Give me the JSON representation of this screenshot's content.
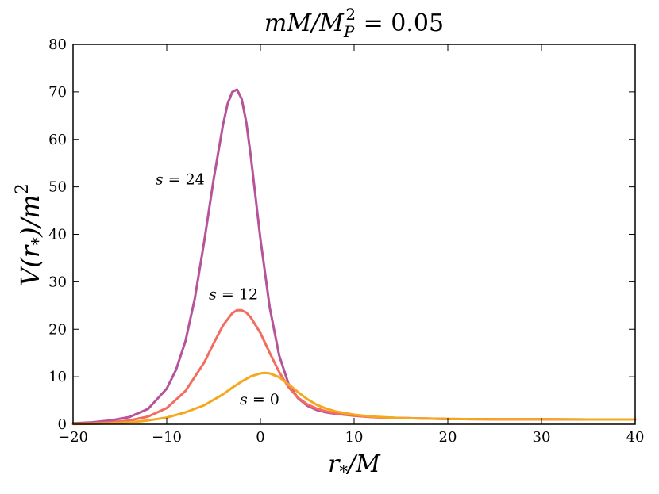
{
  "chart_data": {
    "type": "line",
    "title": {
      "main": "mM/M",
      "sub": "P",
      "sup": "2",
      "suffix": " = 0.05"
    },
    "xlabel": {
      "main": "r",
      "sub": "*",
      "suffix": "/M"
    },
    "ylabel": {
      "prefix": "V(r",
      "sub": "*",
      "mid": ")/m",
      "sup": "2"
    },
    "xlim": [
      -20,
      40
    ],
    "ylim": [
      0,
      80
    ],
    "xticks": [
      -20,
      -10,
      0,
      10,
      20,
      30,
      40
    ],
    "yticks": [
      0,
      10,
      20,
      30,
      40,
      50,
      60,
      70,
      80
    ],
    "xtick_labels": [
      "−20",
      "−10",
      "0",
      "10",
      "20",
      "30",
      "40"
    ],
    "ytick_labels": [
      "0",
      "10",
      "20",
      "30",
      "40",
      "50",
      "60",
      "70",
      "80"
    ],
    "grid": false,
    "series": [
      {
        "name": "s = 24",
        "color": "#b5539b",
        "x": [
          -20,
          -18,
          -16,
          -14,
          -12,
          -10,
          -9,
          -8,
          -7,
          -6,
          -5,
          -4,
          -3.5,
          -3,
          -2.5,
          -2,
          -1.5,
          -1,
          0,
          1,
          2,
          3,
          4,
          5,
          6,
          7,
          8,
          10,
          12,
          15,
          20,
          25,
          30,
          35,
          40
        ],
        "y": [
          0.2,
          0.4,
          0.8,
          1.5,
          3.2,
          7.5,
          11.5,
          17.5,
          26.5,
          38.5,
          51.5,
          63.0,
          67.5,
          70.0,
          70.5,
          68.5,
          63.5,
          56.0,
          39.0,
          24.5,
          14.5,
          8.5,
          5.5,
          3.9,
          3.0,
          2.5,
          2.2,
          1.8,
          1.5,
          1.3,
          1.1,
          1.05,
          1.03,
          1.01,
          1.0
        ]
      },
      {
        "name": "s = 12",
        "color": "#f46b60",
        "x": [
          -20,
          -18,
          -16,
          -14,
          -12,
          -10,
          -8,
          -6,
          -5,
          -4,
          -3,
          -2.5,
          -2,
          -1.5,
          -1,
          0,
          1,
          2,
          3,
          4,
          5,
          6,
          7,
          8,
          10,
          12,
          15,
          20,
          25,
          30,
          35,
          40
        ],
        "y": [
          0.1,
          0.2,
          0.4,
          0.8,
          1.6,
          3.4,
          7.0,
          13.0,
          17.0,
          20.8,
          23.4,
          24.0,
          24.0,
          23.5,
          22.4,
          19.2,
          15.0,
          11.0,
          7.8,
          5.6,
          4.2,
          3.3,
          2.7,
          2.3,
          1.8,
          1.5,
          1.3,
          1.1,
          1.05,
          1.03,
          1.01,
          1.0
        ]
      },
      {
        "name": "s = 0",
        "color": "#f5a81d",
        "x": [
          -20,
          -18,
          -16,
          -14,
          -12,
          -10,
          -8,
          -6,
          -4,
          -3,
          -2,
          -1,
          0,
          0.5,
          1,
          2,
          3,
          4,
          5,
          6,
          7,
          8,
          10,
          12,
          15,
          20,
          25,
          30,
          35,
          40
        ],
        "y": [
          0.05,
          0.1,
          0.2,
          0.4,
          0.8,
          1.4,
          2.5,
          4.0,
          6.3,
          7.7,
          9.0,
          10.1,
          10.7,
          10.8,
          10.7,
          9.9,
          8.4,
          6.8,
          5.3,
          4.1,
          3.3,
          2.7,
          2.0,
          1.6,
          1.3,
          1.1,
          1.05,
          1.03,
          1.01,
          1.0
        ]
      }
    ],
    "annotations": [
      {
        "var": "s",
        "eq": " = ",
        "num": "24",
        "x": -11.2,
        "y": 50.5
      },
      {
        "var": "s",
        "eq": " = ",
        "num": "12",
        "x": -5.5,
        "y": 26.3
      },
      {
        "var": "s",
        "eq": " = ",
        "num": "0",
        "x": -2.2,
        "y": 4.2
      }
    ]
  }
}
